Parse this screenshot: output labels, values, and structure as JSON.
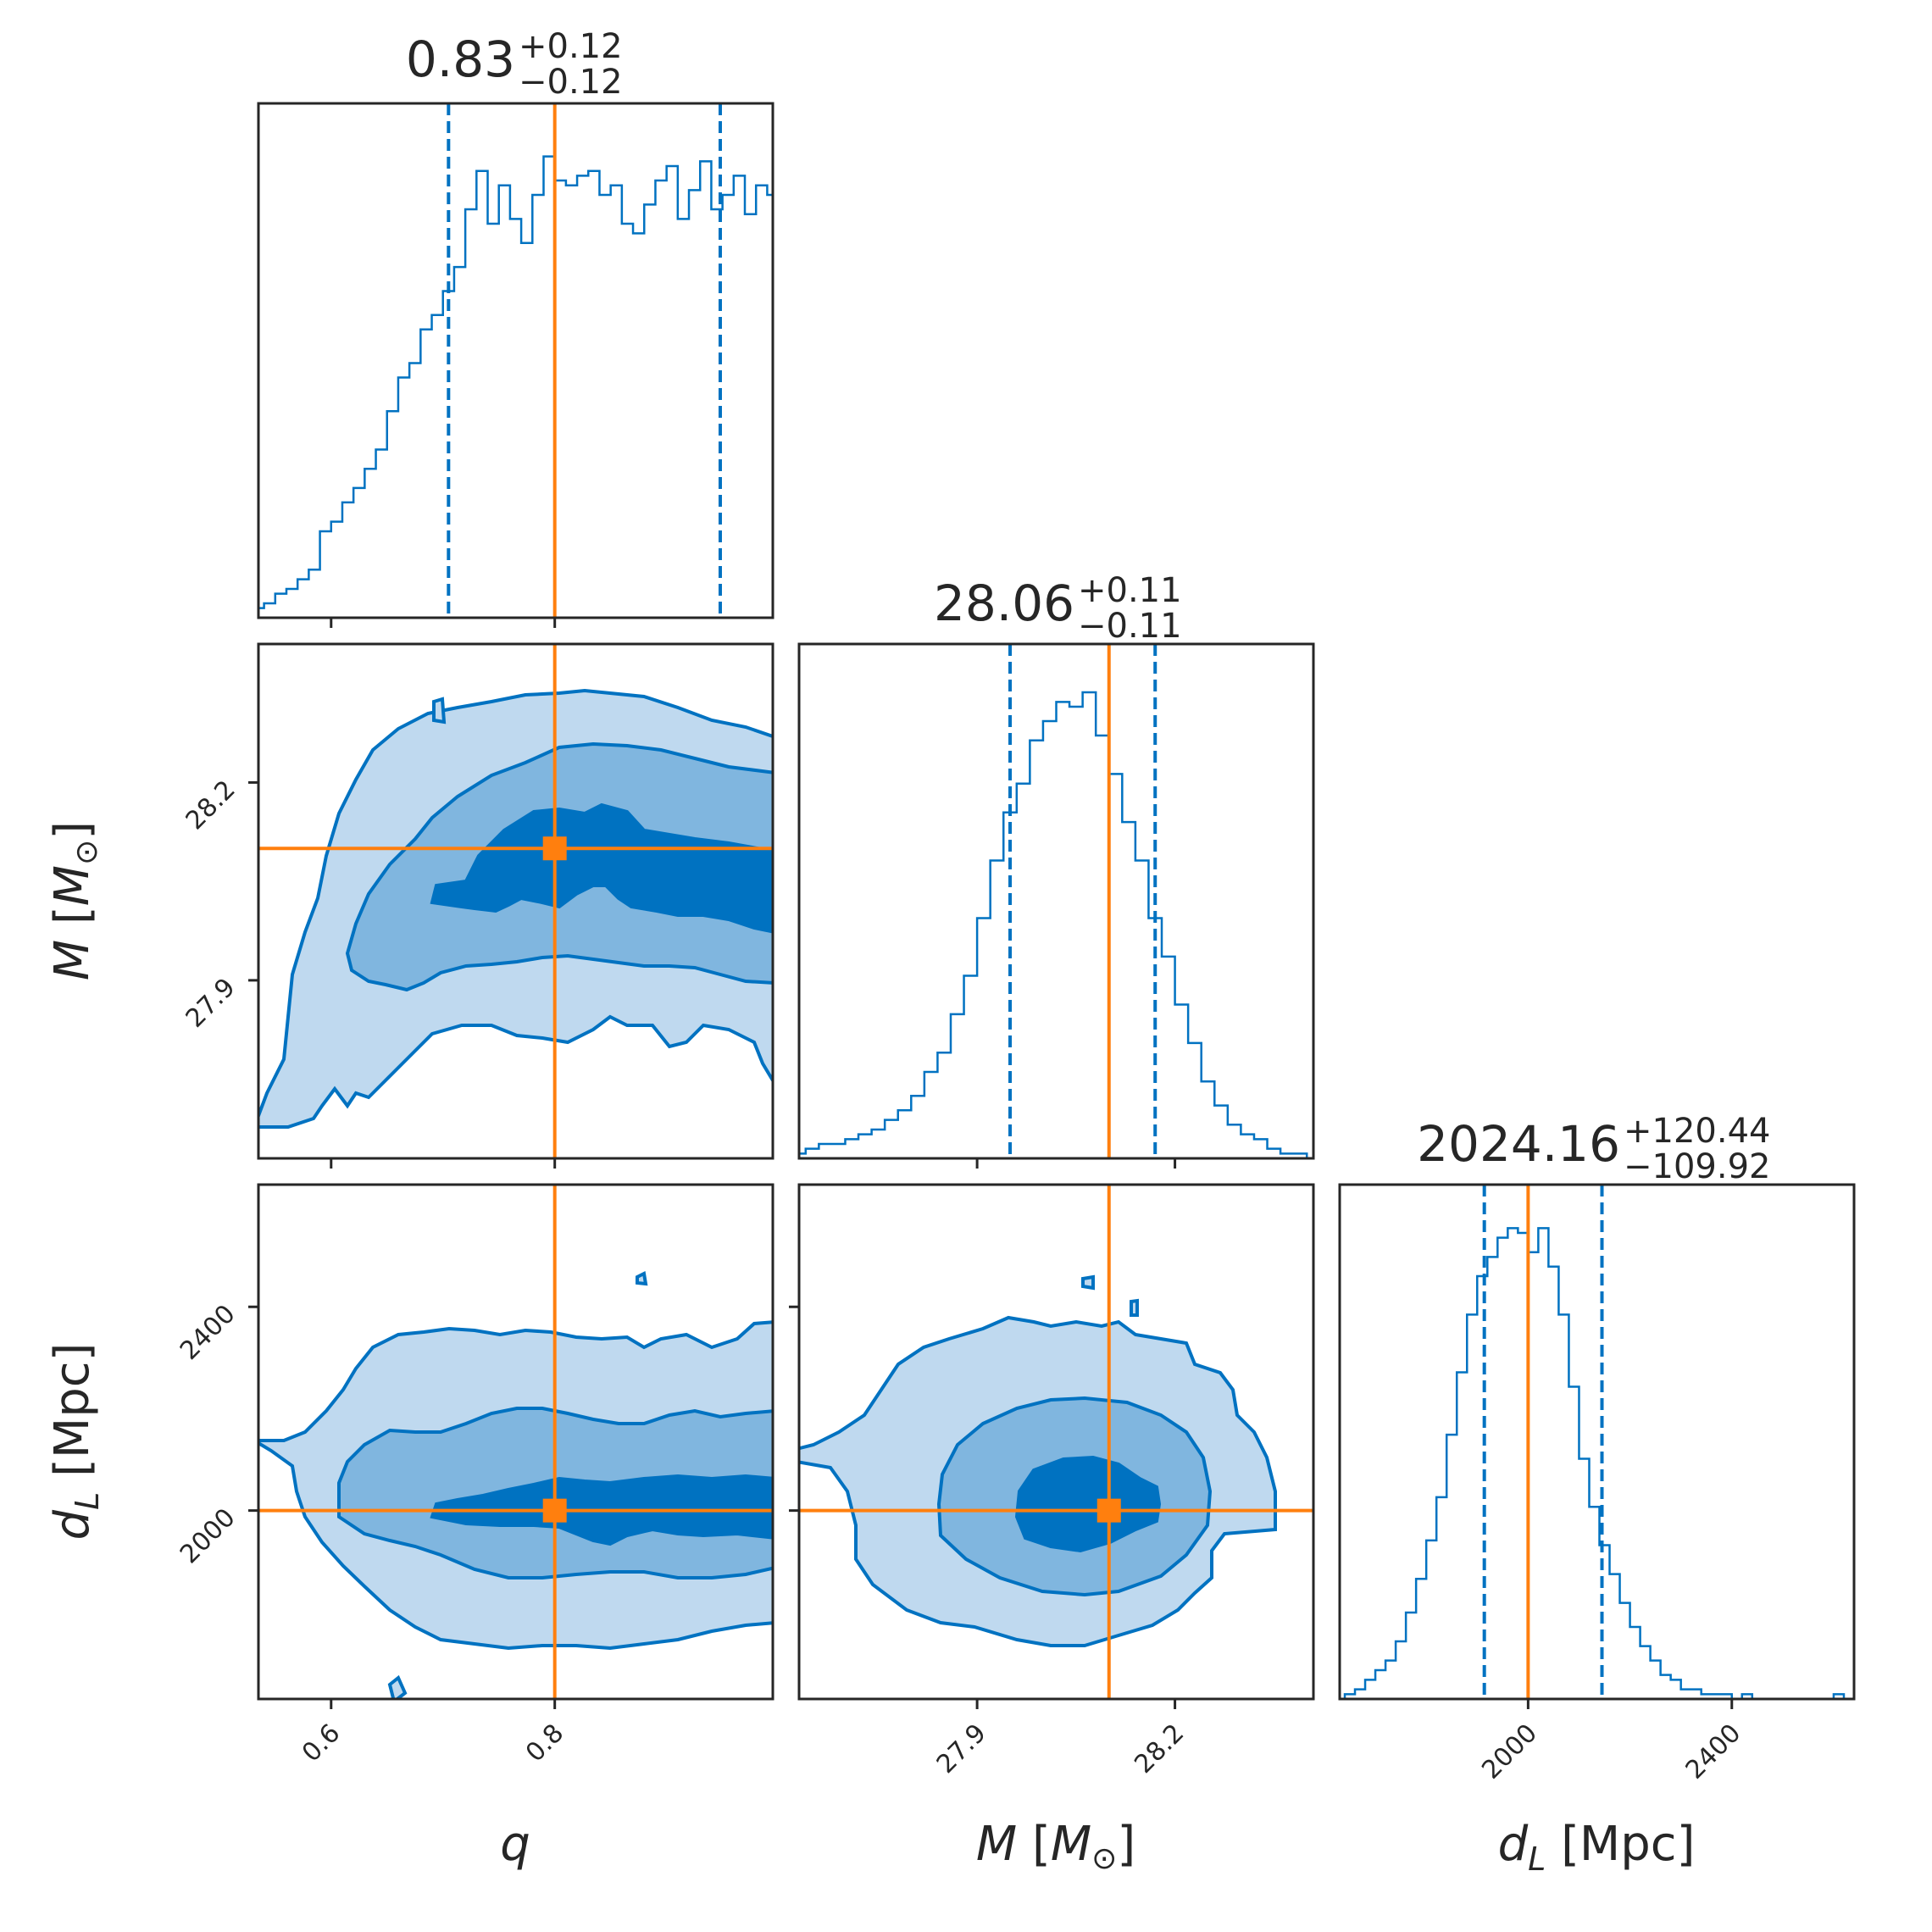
{
  "colors": {
    "hist": "#0072C1",
    "contour_line": "#0072C1",
    "fill_outer": "#bfd9ef",
    "fill_mid": "#80b6df",
    "fill_inner": "#0072C1",
    "truth": "#ff7f0e",
    "frame": "#262626"
  },
  "chart_data": {
    "type": "corner",
    "truths": {
      "q": 0.8,
      "M": 28.1,
      "dL": 2000
    },
    "parameters": [
      {
        "key": "q",
        "label": "q",
        "range": [
          0.535,
          0.995
        ],
        "ticks": [
          0.6,
          0.8
        ],
        "tick_labels": [
          "0.6",
          "0.8"
        ],
        "title_median": "0.83",
        "title_plus": "+0.12",
        "title_minus": "−0.12",
        "quantiles": [
          0.705,
          0.948
        ],
        "hist_x": [
          0.535,
          0.545,
          0.555,
          0.565,
          0.575,
          0.585,
          0.595,
          0.605,
          0.615,
          0.625,
          0.635,
          0.645,
          0.655,
          0.665,
          0.675,
          0.685,
          0.695,
          0.705,
          0.715,
          0.725,
          0.735,
          0.745,
          0.755,
          0.765,
          0.775,
          0.785,
          0.795,
          0.805,
          0.815,
          0.825,
          0.835,
          0.845,
          0.855,
          0.865,
          0.875,
          0.885,
          0.895,
          0.905,
          0.915,
          0.925,
          0.935,
          0.945,
          0.955,
          0.965,
          0.975,
          0.985,
          0.995
        ],
        "hist_y": [
          0.02,
          0.03,
          0.05,
          0.06,
          0.08,
          0.1,
          0.18,
          0.2,
          0.24,
          0.27,
          0.31,
          0.35,
          0.43,
          0.5,
          0.53,
          0.6,
          0.63,
          0.68,
          0.73,
          0.85,
          0.93,
          0.82,
          0.9,
          0.83,
          0.78,
          0.88,
          0.96,
          0.91,
          0.9,
          0.92,
          0.93,
          0.88,
          0.9,
          0.82,
          0.8,
          0.86,
          0.91,
          0.94,
          0.83,
          0.89,
          0.95,
          0.85,
          0.88,
          0.92,
          0.84,
          0.9,
          0.88
        ]
      },
      {
        "key": "M",
        "label": "M [M⊙]",
        "range": [
          27.63,
          28.41
        ],
        "ticks": [
          27.9,
          28.2
        ],
        "tick_labels": [
          "27.9",
          "28.2"
        ],
        "title_median": "28.06",
        "title_plus": "+0.11",
        "title_minus": "−0.11",
        "quantiles": [
          27.95,
          28.17
        ],
        "hist_x": [
          27.63,
          27.65,
          27.67,
          27.69,
          27.71,
          27.73,
          27.75,
          27.77,
          27.79,
          27.81,
          27.83,
          27.85,
          27.87,
          27.89,
          27.91,
          27.93,
          27.95,
          27.97,
          27.99,
          28.01,
          28.03,
          28.05,
          28.07,
          28.09,
          28.11,
          28.13,
          28.15,
          28.17,
          28.19,
          28.21,
          28.23,
          28.25,
          28.27,
          28.29,
          28.31,
          28.33,
          28.35,
          28.37,
          28.39,
          28.41
        ],
        "hist_y": [
          0.01,
          0.02,
          0.03,
          0.03,
          0.04,
          0.05,
          0.06,
          0.08,
          0.1,
          0.13,
          0.18,
          0.22,
          0.3,
          0.38,
          0.5,
          0.62,
          0.72,
          0.78,
          0.87,
          0.91,
          0.95,
          0.94,
          0.97,
          0.88,
          0.8,
          0.7,
          0.62,
          0.5,
          0.42,
          0.32,
          0.24,
          0.16,
          0.11,
          0.07,
          0.05,
          0.04,
          0.02,
          0.01,
          0.01,
          0.0
        ]
      },
      {
        "key": "dL",
        "label": "d_L [Mpc]",
        "range": [
          1630,
          2640
        ],
        "ticks": [
          2000,
          2400
        ],
        "tick_labels": [
          "2000",
          "2400"
        ],
        "title_median": "2024.16",
        "title_plus": "+120.44",
        "title_minus": "−109.92",
        "quantiles": [
          1914,
          2145
        ],
        "hist_x": [
          1630,
          1650,
          1670,
          1690,
          1710,
          1730,
          1750,
          1770,
          1790,
          1810,
          1830,
          1850,
          1870,
          1890,
          1910,
          1930,
          1950,
          1970,
          1990,
          2010,
          2030,
          2050,
          2070,
          2090,
          2110,
          2130,
          2150,
          2170,
          2190,
          2210,
          2230,
          2250,
          2270,
          2290,
          2310,
          2330,
          2350,
          2370,
          2390,
          2410,
          2430,
          2450,
          2470,
          2490,
          2510,
          2530,
          2550,
          2570,
          2590,
          2610,
          2630
        ],
        "hist_y": [
          0.0,
          0.01,
          0.02,
          0.04,
          0.06,
          0.08,
          0.12,
          0.18,
          0.25,
          0.33,
          0.42,
          0.55,
          0.68,
          0.8,
          0.88,
          0.92,
          0.96,
          0.98,
          0.97,
          0.93,
          0.98,
          0.9,
          0.8,
          0.65,
          0.5,
          0.4,
          0.32,
          0.26,
          0.2,
          0.15,
          0.11,
          0.08,
          0.05,
          0.04,
          0.02,
          0.02,
          0.01,
          0.01,
          0.01,
          0.0,
          0.01,
          0.0,
          0.0,
          0.0,
          0.0,
          0.0,
          0.0,
          0.0,
          0.0,
          0.01,
          0.0
        ]
      }
    ]
  }
}
